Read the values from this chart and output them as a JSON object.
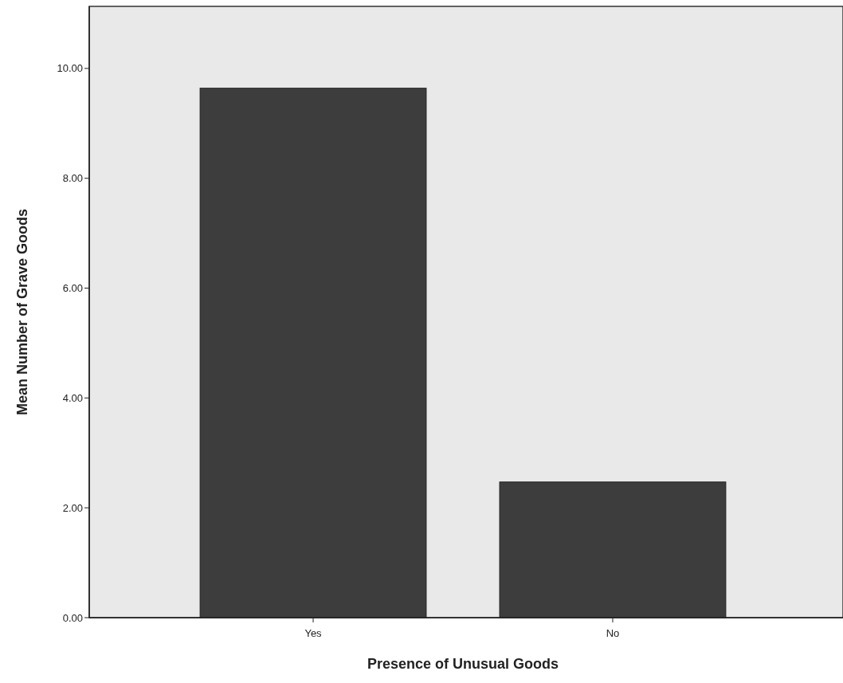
{
  "chart_data": {
    "type": "bar",
    "xlabel": "Presence of Unusual Goods",
    "ylabel": "Mean Number of Grave Goods",
    "categories": [
      "Yes",
      "No"
    ],
    "values": [
      9.64,
      2.47
    ],
    "color": "#3d3d3d",
    "ylim": [
      0,
      11.13
    ],
    "yticks": [
      {
        "value": 0,
        "label": "0.00"
      },
      {
        "value": 2,
        "label": "2.00"
      },
      {
        "value": 4,
        "label": "4.00"
      },
      {
        "value": 6,
        "label": "6.00"
      },
      {
        "value": 8,
        "label": "8.00"
      },
      {
        "value": 10,
        "label": "10.00"
      }
    ],
    "grid": false
  }
}
